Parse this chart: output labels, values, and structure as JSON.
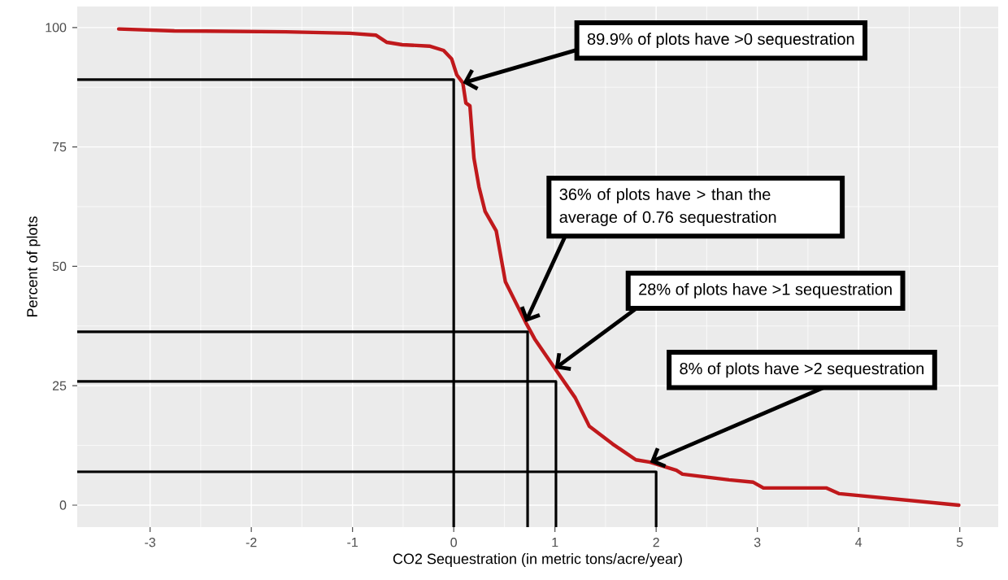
{
  "chart_data": {
    "type": "line",
    "xlabel": "CO2 Sequestration (in metric tons/acre/year)",
    "ylabel": "Percent of plots",
    "xlim": [
      -3.72,
      5.38
    ],
    "ylim": [
      -4.6,
      104.4
    ],
    "xticks": [
      -3,
      -2,
      -1,
      0,
      1,
      2,
      3,
      4,
      5
    ],
    "yticks": [
      0,
      25,
      50,
      75,
      100
    ],
    "grid": true,
    "line_style": "solid",
    "series": [
      {
        "color": "#c0191c",
        "x": [
          -3.31,
          -2.76,
          -1.66,
          -1.03,
          -0.77,
          -0.66,
          -0.51,
          -0.24,
          -0.1,
          -0.02,
          0.03,
          0.09,
          0.12,
          0.16,
          0.2,
          0.25,
          0.31,
          0.42,
          0.51,
          0.71,
          0.8,
          1.0,
          1.2,
          1.34,
          1.57,
          1.8,
          1.94,
          2.2,
          2.26,
          2.72,
          2.96,
          3.06,
          3.68,
          3.81,
          4.99
        ],
        "values": [
          99.7,
          99.3,
          99.1,
          98.8,
          98.4,
          96.9,
          96.4,
          96.1,
          95.2,
          93.4,
          90.1,
          88.4,
          84.2,
          83.6,
          72.6,
          66.6,
          61.5,
          57.4,
          46.8,
          38.3,
          34.8,
          28.6,
          22.5,
          16.5,
          12.8,
          9.5,
          9.0,
          7.3,
          6.5,
          5.3,
          4.8,
          3.6,
          3.6,
          2.4,
          0
        ]
      },
      {
        "color": "#000000",
        "x": [
          -3.72,
          0,
          0
        ],
        "values": [
          89.1,
          89.1,
          -4.6
        ]
      },
      {
        "color": "#000000",
        "x": [
          -3.72,
          0.73,
          0.73
        ],
        "values": [
          36.3,
          36.3,
          -4.6
        ]
      },
      {
        "color": "#000000",
        "x": [
          -3.72,
          1.01,
          1.01
        ],
        "values": [
          25.9,
          25.9,
          -4.6
        ]
      },
      {
        "color": "#000000",
        "x": [
          -3.72,
          2.0,
          2.0
        ],
        "values": [
          7.0,
          7.0,
          -4.6
        ]
      }
    ],
    "annotations": [
      {
        "text": "89.9% of plots have >0 sequestration",
        "x": 0.09,
        "y": 88.4
      },
      {
        "text": "36% of plots have > than the average of 0.76 sequestration",
        "x": 0.71,
        "y": 38.3
      },
      {
        "text": "28% of plots have >1 sequestration",
        "x": 1.0,
        "y": 28.6
      },
      {
        "text": "8% of plots have >2 sequestration",
        "x": 1.94,
        "y": 9.0
      }
    ]
  }
}
